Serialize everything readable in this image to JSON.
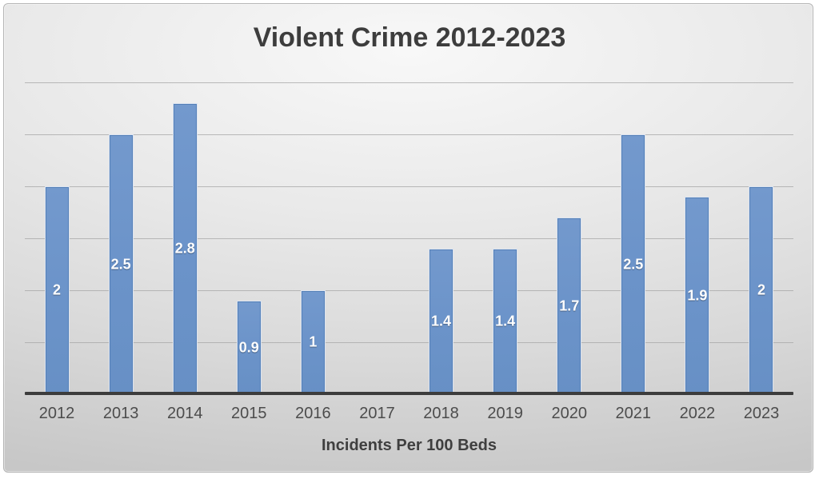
{
  "chart_data": {
    "type": "bar",
    "title": "Violent Crime 2012-2023",
    "xlabel": "Incidents Per 100 Beds",
    "ylabel": "",
    "categories": [
      "2012",
      "2013",
      "2014",
      "2015",
      "2016",
      "2017",
      "2018",
      "2019",
      "2020",
      "2021",
      "2022",
      "2023"
    ],
    "values": [
      2,
      2.5,
      2.8,
      0.9,
      1,
      null,
      1.4,
      1.4,
      1.7,
      2.5,
      1.9,
      2
    ],
    "value_labels": [
      "2",
      "2.5",
      "2.8",
      "0.9",
      "1",
      "",
      "1.4",
      "1.4",
      "1.7",
      "2.5",
      "1.9",
      "2"
    ],
    "ylim": [
      0,
      3
    ],
    "gridline_step": 0.5,
    "grid": true,
    "y_axis_labels_visible": false,
    "legend_position": "none",
    "data_label_position": "center-inside",
    "colors": {
      "bar_fill": "#6b93c9",
      "bar_edge": "#5480b8",
      "bar_highlight": "#dbe3f0",
      "data_label": "#ffffff",
      "title": "#3d3d3d",
      "tick_label": "#4c4c4c",
      "axis_title": "#3f3f3f",
      "gridline": "#a6a6a6",
      "axis_line": "#3c3c3c",
      "background_light": "#f8f8f8",
      "background_dark": "#c7c7c7",
      "frame_border": "#b5b5b5"
    }
  }
}
